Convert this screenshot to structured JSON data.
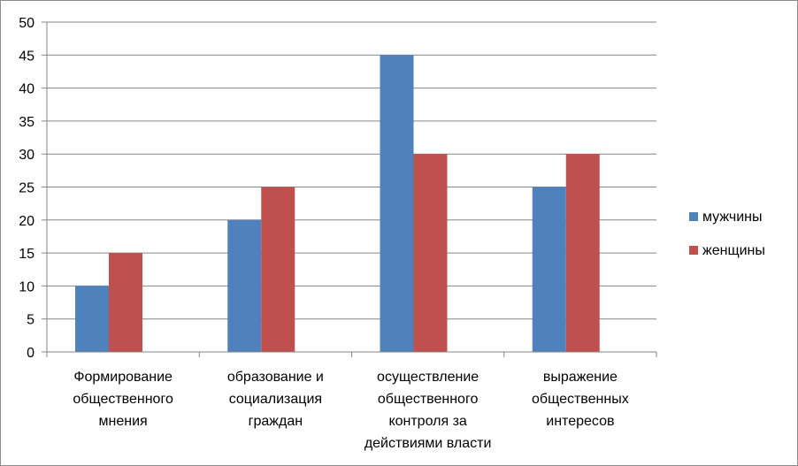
{
  "chart_data": {
    "type": "bar",
    "title": "",
    "xlabel": "",
    "ylabel": "",
    "ylim": [
      0,
      50
    ],
    "y_ticks": [
      0,
      5,
      10,
      15,
      20,
      25,
      30,
      35,
      40,
      45,
      50
    ],
    "grid": true,
    "legend_position": "right",
    "categories": [
      [
        "Формирование",
        "общественного",
        "мнения"
      ],
      [
        "образование и",
        "социализация",
        "граждан"
      ],
      [
        "осуществление",
        "общественного",
        "контроля за",
        "действиями власти"
      ],
      [
        "выражение",
        "общественных",
        "интересов"
      ]
    ],
    "series": [
      {
        "name": "мужчины",
        "color": "#4f81bd",
        "values": [
          10,
          20,
          45,
          25
        ]
      },
      {
        "name": "женщины",
        "color": "#c0504d",
        "values": [
          15,
          25,
          30,
          30
        ]
      }
    ]
  }
}
